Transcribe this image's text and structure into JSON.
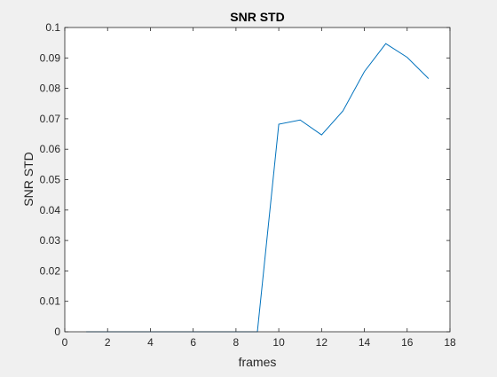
{
  "chart_data": {
    "type": "line",
    "title": "SNR STD",
    "xlabel": "frames",
    "ylabel": "SNR STD",
    "xlim": [
      0,
      18
    ],
    "ylim": [
      0,
      0.1
    ],
    "xticks": [
      0,
      2,
      4,
      6,
      8,
      10,
      12,
      14,
      16,
      18
    ],
    "xtick_labels": [
      "0",
      "2",
      "4",
      "6",
      "8",
      "10",
      "12",
      "14",
      "16",
      "18"
    ],
    "yticks": [
      0,
      0.01,
      0.02,
      0.03,
      0.04,
      0.05,
      0.06,
      0.07,
      0.08,
      0.09,
      0.1
    ],
    "ytick_labels": [
      "0",
      "0.01",
      "0.02",
      "0.03",
      "0.04",
      "0.05",
      "0.06",
      "0.07",
      "0.08",
      "0.09",
      "0.1"
    ],
    "grid": false,
    "series": [
      {
        "color": "#0072bd",
        "x": [
          1,
          2,
          3,
          4,
          5,
          6,
          7,
          8,
          9,
          10,
          11,
          12,
          13,
          14,
          15,
          16,
          17
        ],
        "y": [
          0,
          0,
          0,
          0,
          0,
          0,
          0,
          0,
          0,
          0.0682,
          0.0696,
          0.0647,
          0.0726,
          0.0855,
          0.0947,
          0.0902,
          0.0832
        ]
      }
    ]
  }
}
